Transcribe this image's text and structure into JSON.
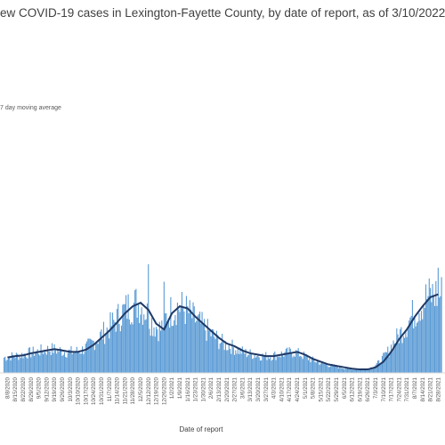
{
  "chart_data": {
    "type": "bar",
    "title": "ew COVID-19 cases in Lexington-Fayette County, by date of report, as of 3/10/2022",
    "xlabel": "Date of report",
    "ylabel": "",
    "legend": {
      "entries": [
        "7 day moving average"
      ],
      "placement": "top-left"
    },
    "grid": false,
    "bar_color": "#5b9bd5",
    "line_color": "#1f3864",
    "ylim": [
      0,
      500
    ],
    "x_tick_labels": [
      "8/8/2020",
      "8/15/2020",
      "8/22/2020",
      "8/29/2020",
      "9/5/2020",
      "9/12/2020",
      "9/19/2020",
      "9/26/2020",
      "10/3/2020",
      "10/10/2020",
      "10/17/2020",
      "10/24/2020",
      "10/31/2020",
      "11/7/2020",
      "11/14/2020",
      "11/21/2020",
      "11/28/2020",
      "12/5/2020",
      "12/12/2020",
      "12/19/2020",
      "12/26/2020",
      "1/2/2021",
      "1/9/2021",
      "1/16/2021",
      "1/23/2021",
      "1/30/2021",
      "2/6/2021",
      "2/13/2021",
      "2/20/2021",
      "2/27/2021",
      "3/6/2021",
      "3/13/2021",
      "3/20/2021",
      "3/27/2021",
      "4/3/2021",
      "4/10/2021",
      "4/17/2021",
      "4/24/2021",
      "5/1/2021",
      "5/8/2021",
      "5/15/2021",
      "5/22/2021",
      "5/29/2021",
      "6/5/2021",
      "6/12/2021",
      "6/19/2021",
      "6/26/2021",
      "7/3/2021",
      "7/10/2021",
      "7/17/2021",
      "7/24/2021",
      "7/31/2021",
      "8/7/2021",
      "8/14/2021",
      "8/21/2021",
      "8/28/2021"
    ],
    "weekly_moving_average": [
      22,
      24,
      25,
      28,
      30,
      32,
      34,
      32,
      30,
      30,
      33,
      40,
      50,
      60,
      72,
      85,
      95,
      100,
      90,
      70,
      62,
      85,
      95,
      92,
      80,
      70,
      60,
      50,
      42,
      38,
      32,
      28,
      26,
      24,
      24,
      26,
      28,
      30,
      26,
      20,
      16,
      12,
      10,
      8,
      6,
      5,
      5,
      8,
      16,
      30,
      48,
      62,
      80,
      95,
      108,
      112
    ],
    "daily_spikes": [
      {
        "date": "12/12/2020",
        "value": 155
      },
      {
        "date": "12/26/2020",
        "value": 130
      },
      {
        "date": "8/28/2021",
        "value": 150
      }
    ]
  }
}
